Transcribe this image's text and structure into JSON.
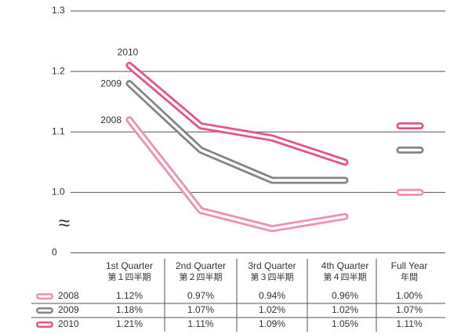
{
  "chart_data": {
    "type": "line",
    "categories": [
      "1st Quarter",
      "2nd Quarter",
      "3rd Quarter",
      "4th Quarter",
      "Full Year"
    ],
    "categories_ja": [
      "第１四半期",
      "第２四半期",
      "第３四半期",
      "第４四半期",
      "年間"
    ],
    "series": [
      {
        "name": "2008",
        "color": "#f08fb0",
        "values": [
          1.12,
          0.97,
          0.94,
          0.96,
          1.0
        ],
        "value_labels": [
          "1.12%",
          "0.97%",
          "0.94%",
          "0.96%",
          "1.00%"
        ]
      },
      {
        "name": "2009",
        "color": "#858585",
        "values": [
          1.18,
          1.07,
          1.02,
          1.02,
          1.07
        ],
        "value_labels": [
          "1.18%",
          "1.07%",
          "1.02%",
          "1.02%",
          "1.07%"
        ]
      },
      {
        "name": "2010",
        "color": "#e8508a",
        "values": [
          1.21,
          1.11,
          1.09,
          1.05,
          1.11
        ],
        "value_labels": [
          "1.21%",
          "1.11%",
          "1.09%",
          "1.05%",
          "1.11%"
        ]
      }
    ],
    "ylim": [
      0,
      1.3
    ],
    "yticks": [
      0,
      {
        "value": 1,
        "label": "1.0"
      },
      1.1,
      1.2,
      1.3
    ],
    "axis_break_symbol": "≈",
    "grid": true
  }
}
